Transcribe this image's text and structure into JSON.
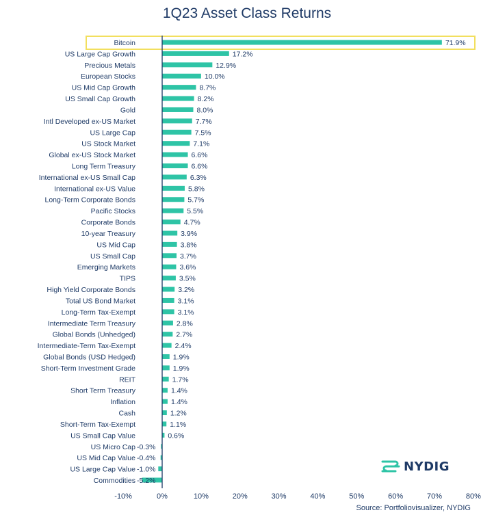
{
  "chart_data": {
    "type": "bar",
    "orientation": "horizontal",
    "title": "1Q23 Asset Class Returns",
    "categories": [
      "Bitcoin",
      "US Large Cap Growth",
      "Precious Metals",
      "European Stocks",
      "US Mid Cap Growth",
      "US Small Cap Growth",
      "Gold",
      "Intl Developed ex-US Market",
      "US Large Cap",
      "US Stock Market",
      "Global ex-US Stock Market",
      "Long Term Treasury",
      "International ex-US Small Cap",
      "International ex-US Value",
      "Long-Term Corporate Bonds",
      "Pacific Stocks",
      "Corporate Bonds",
      "10-year Treasury",
      "US Mid Cap",
      "US Small Cap",
      "Emerging Markets",
      "TIPS",
      "High Yield Corporate Bonds",
      "Total US Bond Market",
      "Long-Term Tax-Exempt",
      "Intermediate Term Treasury",
      "Global Bonds (Unhedged)",
      "Intermediate-Term Tax-Exempt",
      "Global Bonds (USD Hedged)",
      "Short-Term Investment Grade",
      "REIT",
      "Short Term Treasury",
      "Inflation",
      "Cash",
      "Short-Term Tax-Exempt",
      "US Small Cap Value",
      "US Micro Cap",
      "US Mid Cap Value",
      "US Large Cap Value",
      "Commodities"
    ],
    "values": [
      71.9,
      17.2,
      12.9,
      10.0,
      8.7,
      8.2,
      8.0,
      7.7,
      7.5,
      7.1,
      6.6,
      6.6,
      6.3,
      5.8,
      5.7,
      5.5,
      4.7,
      3.9,
      3.8,
      3.7,
      3.6,
      3.5,
      3.2,
      3.1,
      3.1,
      2.8,
      2.7,
      2.4,
      1.9,
      1.9,
      1.7,
      1.4,
      1.4,
      1.2,
      1.1,
      0.6,
      -0.3,
      -0.4,
      -1.0,
      -5.2
    ],
    "data_labels": [
      "71.9%",
      "17.2%",
      "12.9%",
      "10.0%",
      "8.7%",
      "8.2%",
      "8.0%",
      "7.7%",
      "7.5%",
      "7.1%",
      "6.6%",
      "6.6%",
      "6.3%",
      "5.8%",
      "5.7%",
      "5.5%",
      "4.7%",
      "3.9%",
      "3.8%",
      "3.7%",
      "3.6%",
      "3.5%",
      "3.2%",
      "3.1%",
      "3.1%",
      "2.8%",
      "2.7%",
      "2.4%",
      "1.9%",
      "1.9%",
      "1.7%",
      "1.4%",
      "1.4%",
      "1.2%",
      "1.1%",
      "0.6%",
      "-0.3%",
      "-0.4%",
      "-1.0%",
      "-5.2%"
    ],
    "xlim": [
      -10,
      80
    ],
    "xticks": [
      -10,
      0,
      10,
      20,
      30,
      40,
      50,
      60,
      70,
      80
    ],
    "xtick_labels": [
      "-10%",
      "0%",
      "10%",
      "20%",
      "30%",
      "40%",
      "50%",
      "60%",
      "70%",
      "80%"
    ],
    "highlight_category": "Bitcoin",
    "grid": false
  },
  "colors": {
    "bar": "#2ec4a6",
    "highlight_box": "#f2df5e",
    "axis": "#1e3a66",
    "text": "#1e3a66"
  },
  "logo": {
    "text": "NYDIG",
    "icon": "nydig-logo-icon"
  },
  "source": "Source: Portfoliovisualizer, NYDIG"
}
